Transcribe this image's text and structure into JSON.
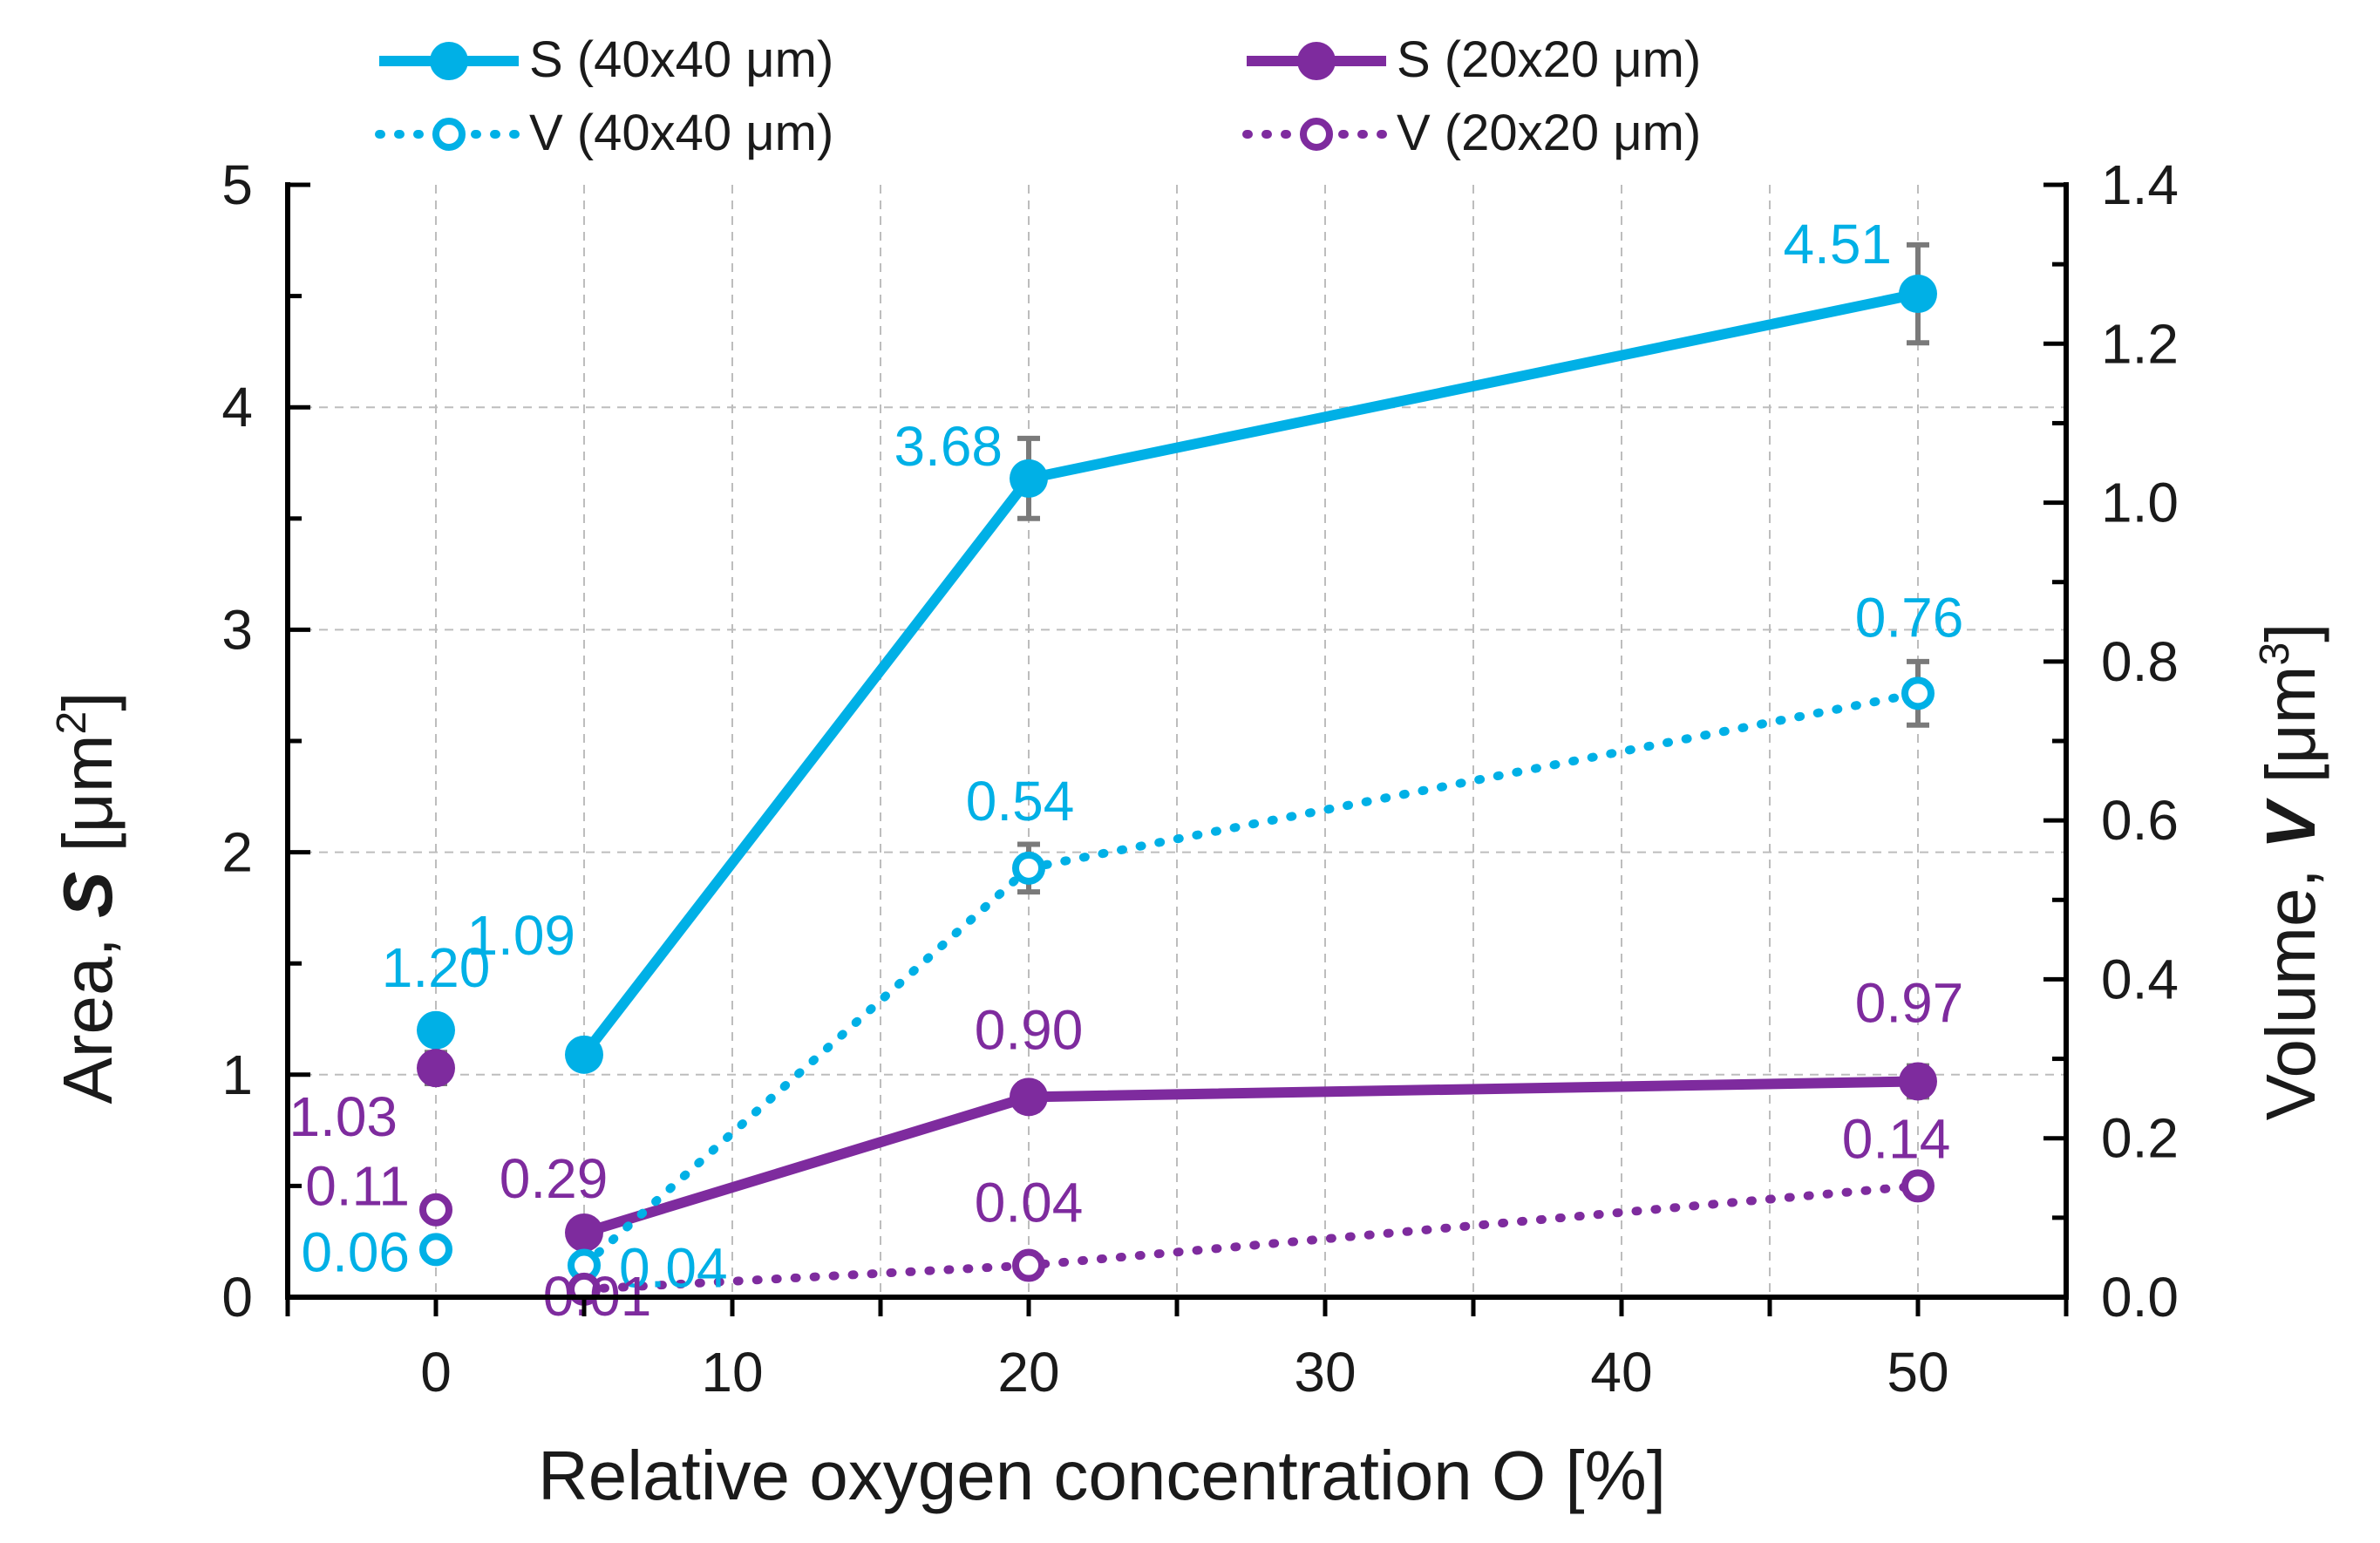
{
  "colors": {
    "cyan": "#00b0e6",
    "purple": "#7e2b9e",
    "error": "#7a7a7a"
  },
  "chart_data": {
    "type": "line",
    "title": "",
    "xlabel": "Relative oxygen concentration O [%]",
    "ylabel": {
      "prefix": "Area, ",
      "symbol": "S",
      "unit_open": " [μm",
      "unit_sup": "2",
      "unit_close": "]"
    },
    "y2label": {
      "prefix": "Volume, ",
      "symbol": "V",
      "unit_open": " [μm",
      "unit_sup": "3",
      "unit_close": "]"
    },
    "xlim": [
      -5,
      55
    ],
    "ylim": [
      0,
      5
    ],
    "y2lim": [
      0,
      1.4
    ],
    "xticks": [
      0,
      10,
      20,
      30,
      40,
      50
    ],
    "yticks": [
      0,
      1,
      2,
      3,
      4,
      5
    ],
    "y2ticks": [
      "0.0",
      "0.2",
      "0.4",
      "0.6",
      "0.8",
      "1.0",
      "1.2",
      "1.4"
    ],
    "grid": true,
    "legend_position": "top",
    "legend": [
      {
        "label": "S (40x40 μm)",
        "series": 0
      },
      {
        "label": "S (20x20 μm)",
        "series": 1
      },
      {
        "label": "V (40x40 μm)",
        "series": 2
      },
      {
        "label": "V (20x20 μm)",
        "series": 3
      }
    ],
    "series": [
      {
        "name": "S (40x40 μm)",
        "axis": "left",
        "color": "cyan",
        "style": "solid",
        "marker": "filled",
        "points": [
          {
            "x": 0,
            "y": 1.2,
            "label": "1.20",
            "connected": false
          },
          {
            "x": 5,
            "y": 1.09,
            "label": "1.09",
            "connected": true
          },
          {
            "x": 20,
            "y": 3.68,
            "label": "3.68",
            "err": 0.18,
            "connected": true
          },
          {
            "x": 50,
            "y": 4.51,
            "label": "4.51",
            "err": 0.22,
            "connected": true
          }
        ]
      },
      {
        "name": "S (20x20 μm)",
        "axis": "left",
        "color": "purple",
        "style": "solid",
        "marker": "filled",
        "points": [
          {
            "x": 0,
            "y": 1.03,
            "label": "1.03",
            "err": 0.07,
            "connected": false
          },
          {
            "x": 5,
            "y": 0.29,
            "label": "0.29",
            "connected": true
          },
          {
            "x": 20,
            "y": 0.9,
            "label": "0.90",
            "err": 0.06,
            "connected": true
          },
          {
            "x": 50,
            "y": 0.97,
            "label": "0.97",
            "err": 0.07,
            "connected": true
          }
        ]
      },
      {
        "name": "V (40x40 μm)",
        "axis": "right",
        "color": "cyan",
        "style": "dotted",
        "marker": "open",
        "points": [
          {
            "x": 0,
            "y": 0.06,
            "label": "0.06",
            "connected": false
          },
          {
            "x": 5,
            "y": 0.04,
            "label": "0.04",
            "connected": true
          },
          {
            "x": 20,
            "y": 0.54,
            "label": "0.54",
            "err": 0.03,
            "connected": true
          },
          {
            "x": 50,
            "y": 0.76,
            "label": "0.76",
            "err": 0.04,
            "connected": true
          }
        ]
      },
      {
        "name": "V (20x20 μm)",
        "axis": "right",
        "color": "purple",
        "style": "dotted",
        "marker": "open",
        "points": [
          {
            "x": 0,
            "y": 0.11,
            "label": "0.11",
            "connected": false
          },
          {
            "x": 5,
            "y": 0.01,
            "label": "0.01",
            "connected": true
          },
          {
            "x": 20,
            "y": 0.04,
            "label": "0.04",
            "connected": true
          },
          {
            "x": 50,
            "y": 0.14,
            "label": "0.14",
            "connected": true
          }
        ]
      }
    ]
  }
}
